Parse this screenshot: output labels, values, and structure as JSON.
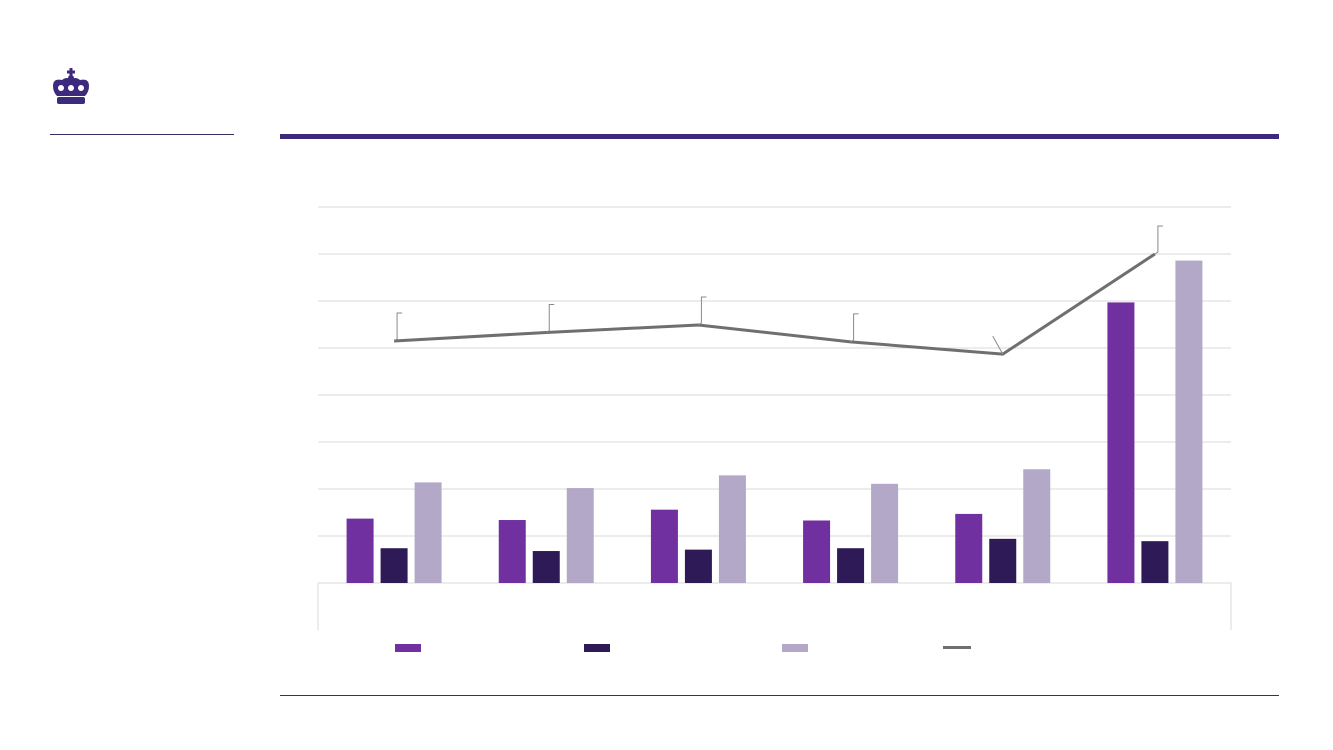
{
  "logo": {
    "icon": "crown-icon",
    "color": "#3d2a7d"
  },
  "colors": {
    "rule": "#3d2a7d",
    "gridline": "#d9d9d9",
    "series": [
      "#7030a0",
      "#2e1a57",
      "#b3a8c8",
      "#6f6f6f"
    ]
  },
  "chart_data": {
    "type": "bar",
    "title": "",
    "xlabel": "",
    "ylabel": "",
    "categories": [
      "",
      "",
      "",
      "",
      "",
      ""
    ],
    "ylim": [
      0,
      8
    ],
    "grid": true,
    "legend_position": "bottom",
    "series": [
      {
        "type": "bar",
        "values": [
          1.37,
          1.34,
          1.56,
          1.33,
          1.47,
          5.97
        ]
      },
      {
        "type": "bar",
        "values": [
          0.74,
          0.68,
          0.71,
          0.74,
          0.94,
          0.89
        ]
      },
      {
        "type": "bar",
        "values": [
          2.14,
          2.02,
          2.29,
          2.11,
          2.42,
          6.86
        ]
      },
      {
        "type": "line",
        "values": [
          5.15,
          5.33,
          5.49,
          5.13,
          4.87,
          7.0
        ]
      }
    ]
  }
}
